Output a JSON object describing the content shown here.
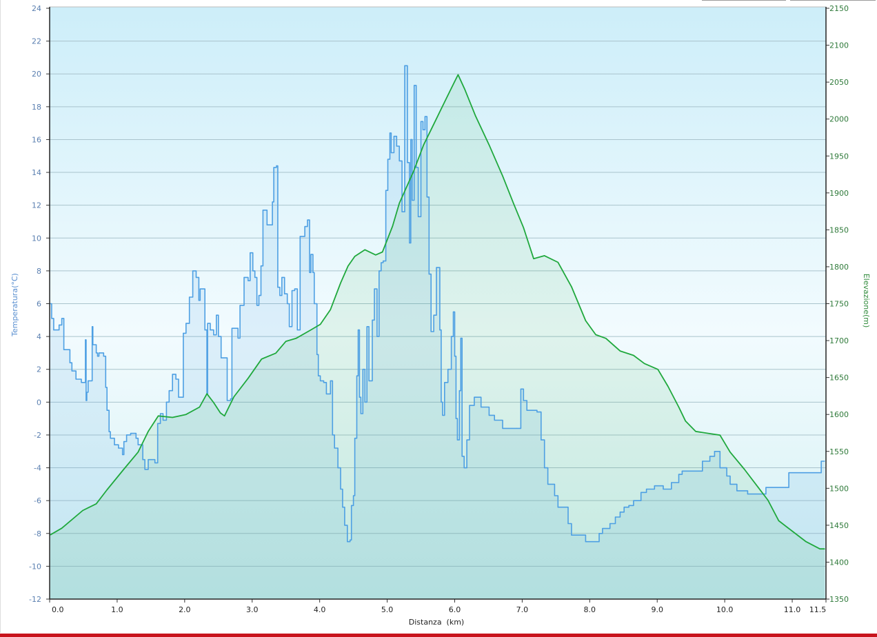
{
  "chart_data": {
    "type": "line",
    "xlabel": "Distanza  (km)",
    "ylabel_left": "Temperatura(°C)",
    "ylabel_right": "Elevazione(m)",
    "xlim": [
      0,
      11.5
    ],
    "ylim_left": [
      -12,
      24
    ],
    "ylim_right": [
      1350,
      2150
    ],
    "x_ticks": [
      "0.0",
      "1.0",
      "2.0",
      "3.0",
      "4.0",
      "5.0",
      "6.0",
      "7.0",
      "8.0",
      "9.0",
      "10.0",
      "11.0",
      "11.5"
    ],
    "x_tick_values": [
      0,
      1,
      2,
      3,
      4,
      5,
      6,
      7,
      8,
      9,
      10,
      11,
      11.5
    ],
    "left_ticks": [
      24,
      22,
      20,
      18,
      16,
      14,
      12,
      10,
      8,
      6,
      4,
      2,
      0,
      -2,
      -4,
      -6,
      -8,
      -10,
      -12
    ],
    "right_ticks": [
      2150,
      2100,
      2050,
      2000,
      1950,
      1900,
      1850,
      1800,
      1750,
      1700,
      1650,
      1600,
      1550,
      1500,
      1450,
      1400,
      1350
    ],
    "grid": true,
    "colors": {
      "temperature": "#4d9fe3",
      "elevation": "#1fa83c",
      "left_axis_text": "#5a7fb0",
      "right_axis_text": "#2f7a3a"
    },
    "series": [
      {
        "name": "Temperatura",
        "axis": "left",
        "step": true,
        "points": [
          [
            0.01,
            6.0
          ],
          [
            0.03,
            5.1
          ],
          [
            0.06,
            4.4
          ],
          [
            0.14,
            4.7
          ],
          [
            0.18,
            5.1
          ],
          [
            0.21,
            5.1
          ],
          [
            0.21,
            3.2
          ],
          [
            0.29,
            3.2
          ],
          [
            0.3,
            2.4
          ],
          [
            0.33,
            1.9
          ],
          [
            0.39,
            1.4
          ],
          [
            0.47,
            1.2
          ],
          [
            0.52,
            1.2
          ],
          [
            0.53,
            3.8
          ],
          [
            0.54,
            0.1
          ],
          [
            0.55,
            0.6
          ],
          [
            0.57,
            1.3
          ],
          [
            0.62,
            1.3
          ],
          [
            0.63,
            4.6
          ],
          [
            0.64,
            3.5
          ],
          [
            0.69,
            3.0
          ],
          [
            0.71,
            2.8
          ],
          [
            0.73,
            3.0
          ],
          [
            0.8,
            2.8
          ],
          [
            0.83,
            0.9
          ],
          [
            0.85,
            -0.5
          ],
          [
            0.88,
            -1.8
          ],
          [
            0.9,
            -2.2
          ],
          [
            0.96,
            -2.6
          ],
          [
            1.02,
            -2.8
          ],
          [
            1.08,
            -3.2
          ],
          [
            1.1,
            -2.4
          ],
          [
            1.14,
            -2.0
          ],
          [
            1.2,
            -1.9
          ],
          [
            1.28,
            -2.2
          ],
          [
            1.31,
            -2.6
          ],
          [
            1.38,
            -3.5
          ],
          [
            1.41,
            -4.1
          ],
          [
            1.45,
            -4.1
          ],
          [
            1.46,
            -3.5
          ],
          [
            1.56,
            -3.7
          ],
          [
            1.6,
            -1.3
          ],
          [
            1.64,
            -0.7
          ],
          [
            1.68,
            -1.1
          ],
          [
            1.73,
            0.0
          ],
          [
            1.77,
            0.7
          ],
          [
            1.82,
            1.7
          ],
          [
            1.87,
            1.4
          ],
          [
            1.91,
            0.3
          ],
          [
            1.96,
            0.3
          ],
          [
            1.98,
            4.2
          ],
          [
            2.02,
            4.8
          ],
          [
            2.07,
            6.4
          ],
          [
            2.12,
            8.0
          ],
          [
            2.17,
            7.6
          ],
          [
            2.21,
            6.2
          ],
          [
            2.23,
            6.9
          ],
          [
            2.26,
            6.9
          ],
          [
            2.3,
            4.4
          ],
          [
            2.33,
            0.5
          ],
          [
            2.34,
            4.8
          ],
          [
            2.38,
            4.4
          ],
          [
            2.43,
            4.1
          ],
          [
            2.47,
            5.3
          ],
          [
            2.5,
            4.0
          ],
          [
            2.54,
            2.7
          ],
          [
            2.58,
            2.7
          ],
          [
            2.63,
            0.1
          ],
          [
            2.68,
            0.2
          ],
          [
            2.7,
            4.5
          ],
          [
            2.77,
            4.5
          ],
          [
            2.79,
            3.9
          ],
          [
            2.82,
            5.9
          ],
          [
            2.88,
            7.6
          ],
          [
            2.94,
            7.4
          ],
          [
            2.97,
            9.1
          ],
          [
            3.01,
            8.0
          ],
          [
            3.04,
            7.6
          ],
          [
            3.07,
            5.9
          ],
          [
            3.1,
            6.5
          ],
          [
            3.13,
            8.3
          ],
          [
            3.16,
            11.7
          ],
          [
            3.22,
            10.8
          ],
          [
            3.3,
            12.2
          ],
          [
            3.32,
            14.3
          ],
          [
            3.36,
            14.4
          ],
          [
            3.38,
            7.0
          ],
          [
            3.41,
            6.5
          ],
          [
            3.44,
            7.6
          ],
          [
            3.48,
            6.6
          ],
          [
            3.52,
            6.0
          ],
          [
            3.55,
            4.6
          ],
          [
            3.59,
            6.8
          ],
          [
            3.63,
            6.9
          ],
          [
            3.67,
            4.4
          ],
          [
            3.71,
            10.1
          ],
          [
            3.78,
            10.7
          ],
          [
            3.82,
            11.1
          ],
          [
            3.85,
            7.9
          ],
          [
            3.87,
            9.0
          ],
          [
            3.9,
            7.9
          ],
          [
            3.92,
            6.0
          ],
          [
            3.96,
            2.9
          ],
          [
            3.98,
            1.6
          ],
          [
            4.01,
            1.3
          ],
          [
            4.06,
            1.2
          ],
          [
            4.1,
            0.5
          ],
          [
            4.16,
            1.3
          ],
          [
            4.19,
            -2.0
          ],
          [
            4.22,
            -2.8
          ],
          [
            4.27,
            -4.0
          ],
          [
            4.31,
            -5.3
          ],
          [
            4.34,
            -6.4
          ],
          [
            4.37,
            -7.5
          ],
          [
            4.41,
            -8.5
          ],
          [
            4.45,
            -8.4
          ],
          [
            4.47,
            -6.3
          ],
          [
            4.5,
            -5.7
          ],
          [
            4.52,
            -2.2
          ],
          [
            4.55,
            1.6
          ],
          [
            4.57,
            4.4
          ],
          [
            4.59,
            0.3
          ],
          [
            4.61,
            -0.7
          ],
          [
            4.64,
            2.0
          ],
          [
            4.67,
            0.0
          ],
          [
            4.7,
            4.6
          ],
          [
            4.73,
            1.3
          ],
          [
            4.78,
            5.0
          ],
          [
            4.81,
            6.9
          ],
          [
            4.85,
            4.0
          ],
          [
            4.88,
            8.0
          ],
          [
            4.91,
            8.5
          ],
          [
            4.94,
            8.6
          ],
          [
            4.98,
            12.9
          ],
          [
            5.01,
            14.8
          ],
          [
            5.04,
            16.4
          ],
          [
            5.06,
            15.2
          ],
          [
            5.1,
            16.2
          ],
          [
            5.14,
            15.6
          ],
          [
            5.18,
            14.7
          ],
          [
            5.22,
            11.6
          ],
          [
            5.26,
            20.5
          ],
          [
            5.3,
            14.6
          ],
          [
            5.33,
            9.7
          ],
          [
            5.35,
            16.0
          ],
          [
            5.37,
            12.3
          ],
          [
            5.4,
            19.3
          ],
          [
            5.43,
            14.3
          ],
          [
            5.46,
            11.3
          ],
          [
            5.5,
            17.1
          ],
          [
            5.53,
            16.6
          ],
          [
            5.56,
            17.4
          ],
          [
            5.59,
            12.5
          ],
          [
            5.62,
            7.8
          ],
          [
            5.65,
            4.3
          ],
          [
            5.69,
            5.3
          ],
          [
            5.73,
            8.2
          ],
          [
            5.78,
            4.4
          ],
          [
            5.8,
            0.0
          ],
          [
            5.82,
            -0.8
          ],
          [
            5.85,
            1.2
          ],
          [
            5.9,
            2.0
          ],
          [
            5.95,
            4.0
          ],
          [
            5.98,
            5.5
          ],
          [
            6.0,
            2.8
          ],
          [
            6.02,
            -1.0
          ],
          [
            6.04,
            -2.3
          ],
          [
            6.07,
            0.7
          ],
          [
            6.09,
            3.9
          ],
          [
            6.11,
            -3.3
          ],
          [
            6.14,
            -4.0
          ],
          [
            6.18,
            -2.3
          ],
          [
            6.22,
            -0.2
          ],
          [
            6.29,
            0.3
          ],
          [
            6.39,
            -0.3
          ],
          [
            6.51,
            -0.8
          ],
          [
            6.59,
            -1.1
          ],
          [
            6.71,
            -1.6
          ],
          [
            6.92,
            -1.6
          ],
          [
            6.98,
            0.8
          ],
          [
            7.02,
            0.1
          ],
          [
            7.07,
            -0.5
          ],
          [
            7.22,
            -0.6
          ],
          [
            7.28,
            -2.3
          ],
          [
            7.33,
            -4.0
          ],
          [
            7.38,
            -5.0
          ],
          [
            7.48,
            -5.7
          ],
          [
            7.53,
            -6.4
          ],
          [
            7.63,
            -6.4
          ],
          [
            7.68,
            -7.4
          ],
          [
            7.73,
            -8.1
          ],
          [
            7.94,
            -8.5
          ],
          [
            8.1,
            -8.5
          ],
          [
            8.14,
            -8.0
          ],
          [
            8.19,
            -7.7
          ],
          [
            8.3,
            -7.4
          ],
          [
            8.38,
            -7.0
          ],
          [
            8.45,
            -6.7
          ],
          [
            8.51,
            -6.4
          ],
          [
            8.58,
            -6.3
          ],
          [
            8.65,
            -6.0
          ],
          [
            8.76,
            -5.5
          ],
          [
            8.84,
            -5.3
          ],
          [
            8.96,
            -5.1
          ],
          [
            9.09,
            -5.3
          ],
          [
            9.21,
            -4.9
          ],
          [
            9.32,
            -4.4
          ],
          [
            9.37,
            -4.2
          ],
          [
            9.62,
            -4.2
          ],
          [
            9.67,
            -3.6
          ],
          [
            9.78,
            -3.3
          ],
          [
            9.85,
            -3.0
          ],
          [
            9.93,
            -4.0
          ],
          [
            10.03,
            -4.5
          ],
          [
            10.08,
            -5.0
          ],
          [
            10.18,
            -5.4
          ],
          [
            10.34,
            -5.6
          ],
          [
            10.57,
            -5.6
          ],
          [
            10.61,
            -5.2
          ],
          [
            10.9,
            -5.2
          ],
          [
            10.95,
            -4.3
          ],
          [
            11.41,
            -4.3
          ],
          [
            11.43,
            -3.6
          ],
          [
            11.48,
            -3.6
          ]
        ]
      },
      {
        "name": "Elevazione",
        "axis": "right",
        "step": false,
        "points": [
          [
            0.01,
            1437
          ],
          [
            0.18,
            1446
          ],
          [
            0.49,
            1470
          ],
          [
            0.69,
            1479
          ],
          [
            0.85,
            1498
          ],
          [
            1.1,
            1526
          ],
          [
            1.31,
            1549
          ],
          [
            1.46,
            1577
          ],
          [
            1.61,
            1598
          ],
          [
            1.82,
            1596
          ],
          [
            2.02,
            1600
          ],
          [
            2.22,
            1610
          ],
          [
            2.33,
            1628
          ],
          [
            2.43,
            1616
          ],
          [
            2.53,
            1602
          ],
          [
            2.59,
            1598
          ],
          [
            2.73,
            1624
          ],
          [
            2.94,
            1649
          ],
          [
            3.14,
            1675
          ],
          [
            3.35,
            1683
          ],
          [
            3.5,
            1699
          ],
          [
            3.65,
            1703
          ],
          [
            3.86,
            1714
          ],
          [
            4.01,
            1722
          ],
          [
            4.16,
            1742
          ],
          [
            4.31,
            1778
          ],
          [
            4.42,
            1801
          ],
          [
            4.52,
            1814
          ],
          [
            4.67,
            1823
          ],
          [
            4.83,
            1816
          ],
          [
            4.93,
            1820
          ],
          [
            5.08,
            1855
          ],
          [
            5.18,
            1886
          ],
          [
            5.39,
            1929
          ],
          [
            5.54,
            1965
          ],
          [
            5.69,
            1993
          ],
          [
            5.85,
            2023
          ],
          [
            6.0,
            2051
          ],
          [
            6.05,
            2060
          ],
          [
            6.15,
            2040
          ],
          [
            6.31,
            2004
          ],
          [
            6.51,
            1965
          ],
          [
            6.71,
            1923
          ],
          [
            6.87,
            1886
          ],
          [
            7.02,
            1853
          ],
          [
            7.17,
            1811
          ],
          [
            7.33,
            1815
          ],
          [
            7.53,
            1806
          ],
          [
            7.73,
            1773
          ],
          [
            7.94,
            1727
          ],
          [
            8.09,
            1708
          ],
          [
            8.24,
            1703
          ],
          [
            8.45,
            1686
          ],
          [
            8.65,
            1680
          ],
          [
            8.81,
            1669
          ],
          [
            9.01,
            1661
          ],
          [
            9.16,
            1638
          ],
          [
            9.32,
            1610
          ],
          [
            9.42,
            1591
          ],
          [
            9.57,
            1577
          ],
          [
            9.78,
            1574
          ],
          [
            9.93,
            1572
          ],
          [
            10.08,
            1549
          ],
          [
            10.29,
            1526
          ],
          [
            10.49,
            1502
          ],
          [
            10.64,
            1484
          ],
          [
            10.8,
            1456
          ],
          [
            11.0,
            1442
          ],
          [
            11.2,
            1428
          ],
          [
            11.41,
            1418
          ],
          [
            11.48,
            1418
          ]
        ]
      }
    ]
  }
}
